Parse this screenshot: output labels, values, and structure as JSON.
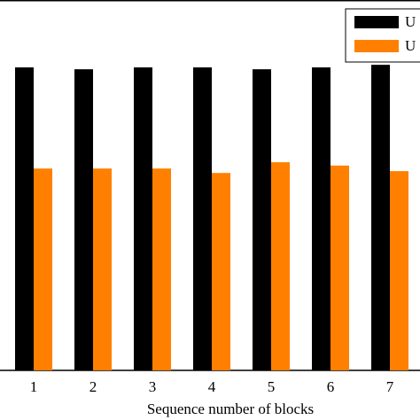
{
  "chart_data": {
    "type": "bar",
    "x_label": "Sequence number of blocks",
    "categories": [
      "1",
      "2",
      "3",
      "4",
      "5",
      "6",
      "7"
    ],
    "series": [
      {
        "name": "U",
        "color": "#000000",
        "values": [
          81.8,
          81.3,
          81.8,
          81.8,
          81.3,
          81.8,
          82.5
        ]
      },
      {
        "name": "U",
        "color": "#ff8000",
        "values": [
          54.5,
          54.5,
          54.5,
          53.3,
          56.2,
          55.3,
          53.8
        ]
      }
    ],
    "ylim": [
      0,
      100
    ]
  }
}
